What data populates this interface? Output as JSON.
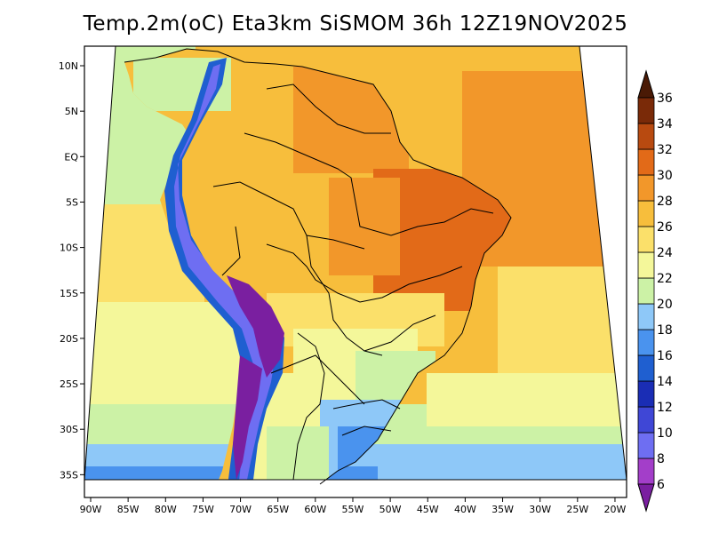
{
  "title": "Temp.2m(oC) Eta3km SiSMOM 36h 12Z19NOV2025",
  "chart_data": {
    "type": "heatmap",
    "variable": "Temp.2m",
    "units": "oC",
    "model": "Eta3km SiSMOM",
    "forecast_hour": "36h",
    "init_time": "12Z19NOV2025",
    "lon_ticks": [
      {
        "lon": -90,
        "label": "90W"
      },
      {
        "lon": -85,
        "label": "85W"
      },
      {
        "lon": -80,
        "label": "80W"
      },
      {
        "lon": -75,
        "label": "75W"
      },
      {
        "lon": -70,
        "label": "70W"
      },
      {
        "lon": -65,
        "label": "65W"
      },
      {
        "lon": -60,
        "label": "60W"
      },
      {
        "lon": -55,
        "label": "55W"
      },
      {
        "lon": -50,
        "label": "50W"
      },
      {
        "lon": -45,
        "label": "45W"
      },
      {
        "lon": -40,
        "label": "40W"
      },
      {
        "lon": -35,
        "label": "35W"
      },
      {
        "lon": -30,
        "label": "30W"
      },
      {
        "lon": -25,
        "label": "25W"
      },
      {
        "lon": -20,
        "label": "20W"
      }
    ],
    "lat_ticks": [
      {
        "lat": 10,
        "label": "10N"
      },
      {
        "lat": 5,
        "label": "5N"
      },
      {
        "lat": 0,
        "label": "EQ"
      },
      {
        "lat": -5,
        "label": "5S"
      },
      {
        "lat": -10,
        "label": "10S"
      },
      {
        "lat": -15,
        "label": "15S"
      },
      {
        "lat": -20,
        "label": "20S"
      },
      {
        "lat": -25,
        "label": "25S"
      },
      {
        "lat": -30,
        "label": "30S"
      },
      {
        "lat": -35,
        "label": "35S"
      }
    ],
    "colorbar": {
      "levels": [
        6,
        8,
        10,
        12,
        14,
        16,
        18,
        20,
        22,
        24,
        26,
        28,
        30,
        32,
        34,
        36
      ],
      "colors": [
        "#7a1fa0",
        "#a33ec9",
        "#6e6ef2",
        "#3f47d6",
        "#1a2db5",
        "#1f5fd0",
        "#4a93ee",
        "#8ec8f8",
        "#ccf2a6",
        "#f4f79a",
        "#fbe06a",
        "#f7be3c",
        "#f2972a",
        "#e26a18",
        "#b84a10",
        "#7a2a08",
        "#4a1a05"
      ],
      "min_arrow": true,
      "max_arrow": true
    }
  }
}
